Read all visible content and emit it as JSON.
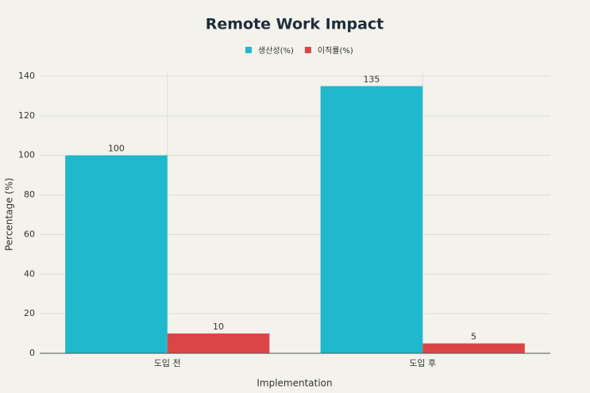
{
  "chart_data": {
    "type": "bar",
    "title": "Remote Work Impact",
    "x_label": "Implementation",
    "y_label": "Percentage (%)",
    "categories": [
      "도입 전",
      "도입 후"
    ],
    "series": [
      {
        "name": "생산성(%)",
        "color": "#1fb8cd",
        "values": [
          100,
          135
        ]
      },
      {
        "name": "이직률(%)",
        "color": "#db4545",
        "values": [
          10,
          5
        ]
      }
    ],
    "ylim": [
      0,
      140
    ],
    "yticks": [
      0,
      20,
      40,
      60,
      80,
      100,
      120,
      140
    ],
    "grid": true,
    "legend": "top"
  }
}
